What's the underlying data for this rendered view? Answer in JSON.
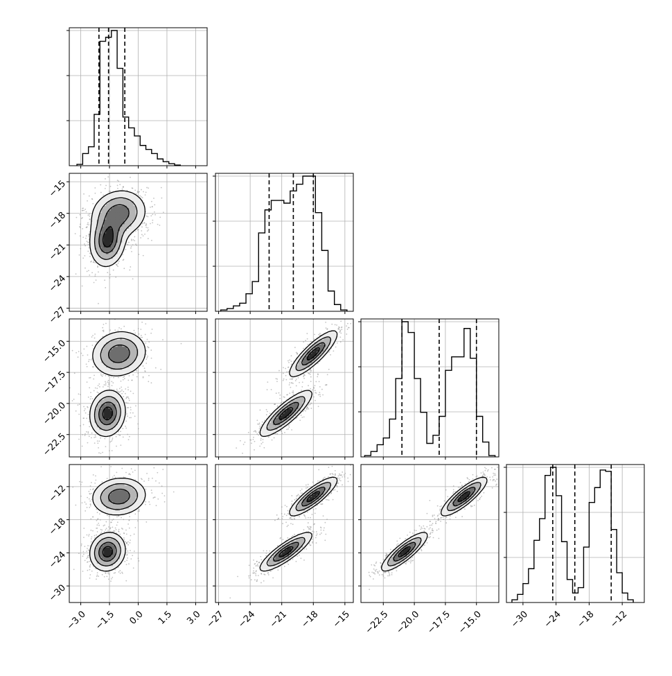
{
  "chart_data": {
    "type": "corner",
    "grid": true,
    "quantile_lines": "dashed",
    "colors": {
      "ink": "#000000",
      "grid": "#b0b0b0",
      "points": "#9a9a9a"
    },
    "params": [
      {
        "range": [
          -3.6,
          3.6
        ],
        "ticks": [
          -3.0,
          -1.5,
          0.0,
          1.5,
          3.0
        ],
        "tick_labels": [
          "−3.0",
          "−1.5",
          "0.0",
          "1.5",
          "3.0"
        ],
        "quantiles": [
          -2.05,
          -1.55,
          -0.7
        ],
        "hist_bins": [
          -3.2,
          -2.9,
          -2.6,
          -2.3,
          -2.0,
          -1.7,
          -1.4,
          -1.1,
          -0.8,
          -0.5,
          -0.2,
          0.1,
          0.4,
          0.7,
          1.0,
          1.3,
          1.6,
          1.9,
          2.2
        ],
        "hist_values": [
          0.01,
          0.09,
          0.14,
          0.38,
          0.92,
          0.95,
          1.0,
          0.72,
          0.36,
          0.28,
          0.22,
          0.15,
          0.12,
          0.09,
          0.05,
          0.03,
          0.015,
          0.005
        ],
        "modes": [
          {
            "c": -1.55,
            "s": 0.45,
            "w": 0.55
          },
          {
            "c": -1.25,
            "s": 0.7,
            "w": 0.45
          }
        ]
      },
      {
        "range": [
          -27.3,
          -14.2
        ],
        "ticks": [
          -27,
          -24,
          -21,
          -18,
          -15
        ],
        "tick_labels": [
          "−27",
          "−24",
          "−21",
          "−18",
          "−15"
        ],
        "quantiles": [
          -22.2,
          -19.9,
          -18.0
        ],
        "hist_bins": [
          -26.8,
          -26.2,
          -25.6,
          -25.0,
          -24.4,
          -23.8,
          -23.2,
          -22.6,
          -22.0,
          -21.4,
          -20.8,
          -20.2,
          -19.6,
          -19.0,
          -18.4,
          -17.8,
          -17.2,
          -16.6,
          -16.0,
          -15.4,
          -14.8
        ],
        "hist_values": [
          0.01,
          0.02,
          0.04,
          0.06,
          0.13,
          0.22,
          0.58,
          0.75,
          0.82,
          0.82,
          0.8,
          0.89,
          0.94,
          1.0,
          1.0,
          0.73,
          0.45,
          0.15,
          0.05,
          0.01
        ],
        "modes": [
          {
            "c": -20.6,
            "s": 1.2,
            "w": 0.5
          },
          {
            "c": -18.2,
            "s": 1.1,
            "w": 0.5
          }
        ]
      },
      {
        "range": [
          -24.3,
          -13.2
        ],
        "ticks": [
          -22.5,
          -20.0,
          -17.5,
          -15.0
        ],
        "tick_labels": [
          "−22.5",
          "−20.0",
          "−17.5",
          "−15.0"
        ],
        "quantiles": [
          -21.0,
          -18.0,
          -15.0
        ],
        "hist_bins": [
          -24.0,
          -23.5,
          -23.0,
          -22.5,
          -22.0,
          -21.5,
          -21.0,
          -20.5,
          -20.0,
          -19.5,
          -19.0,
          -18.5,
          -18.0,
          -17.5,
          -17.0,
          -16.5,
          -16.0,
          -15.5,
          -15.0,
          -14.5,
          -14.0,
          -13.5
        ],
        "hist_values": [
          0.01,
          0.04,
          0.09,
          0.14,
          0.28,
          0.58,
          1.0,
          0.92,
          0.58,
          0.33,
          0.1,
          0.16,
          0.3,
          0.64,
          0.74,
          0.74,
          0.95,
          0.73,
          0.3,
          0.11,
          0.01
        ],
        "modes": [
          {
            "c": -20.8,
            "s": 0.9,
            "w": 0.5
          },
          {
            "c": -16.0,
            "s": 0.9,
            "w": 0.5
          }
        ]
      },
      {
        "range": [
          -33.0,
          -8.0
        ],
        "ticks": [
          -30,
          -24,
          -18,
          -12
        ],
        "tick_labels": [
          "−30",
          "−24",
          "−18",
          "−12"
        ],
        "quantiles": [
          -24.6,
          -20.6,
          -14.0
        ],
        "hist_bins": [
          -32.0,
          -31.0,
          -30.0,
          -29.0,
          -28.0,
          -27.0,
          -26.0,
          -25.0,
          -24.0,
          -23.0,
          -22.0,
          -21.0,
          -20.0,
          -19.0,
          -18.0,
          -17.0,
          -16.0,
          -15.0,
          -14.0,
          -13.0,
          -12.0,
          -11.0,
          -10.0
        ],
        "hist_values": [
          0.02,
          0.06,
          0.14,
          0.25,
          0.46,
          0.62,
          0.94,
          1.0,
          0.79,
          0.45,
          0.17,
          0.07,
          0.11,
          0.41,
          0.74,
          0.85,
          0.98,
          0.97,
          0.54,
          0.22,
          0.07,
          0.02
        ],
        "modes": [
          {
            "c": -23.7,
            "s": 1.7,
            "w": 0.5
          },
          {
            "c": -13.8,
            "s": 1.7,
            "w": 0.5
          }
        ]
      }
    ],
    "cluster_means": [
      [
        -1.6,
        -20.6,
        -20.8,
        -23.8
      ],
      [
        -1.0,
        -18.0,
        -16.0,
        -13.8
      ]
    ]
  }
}
